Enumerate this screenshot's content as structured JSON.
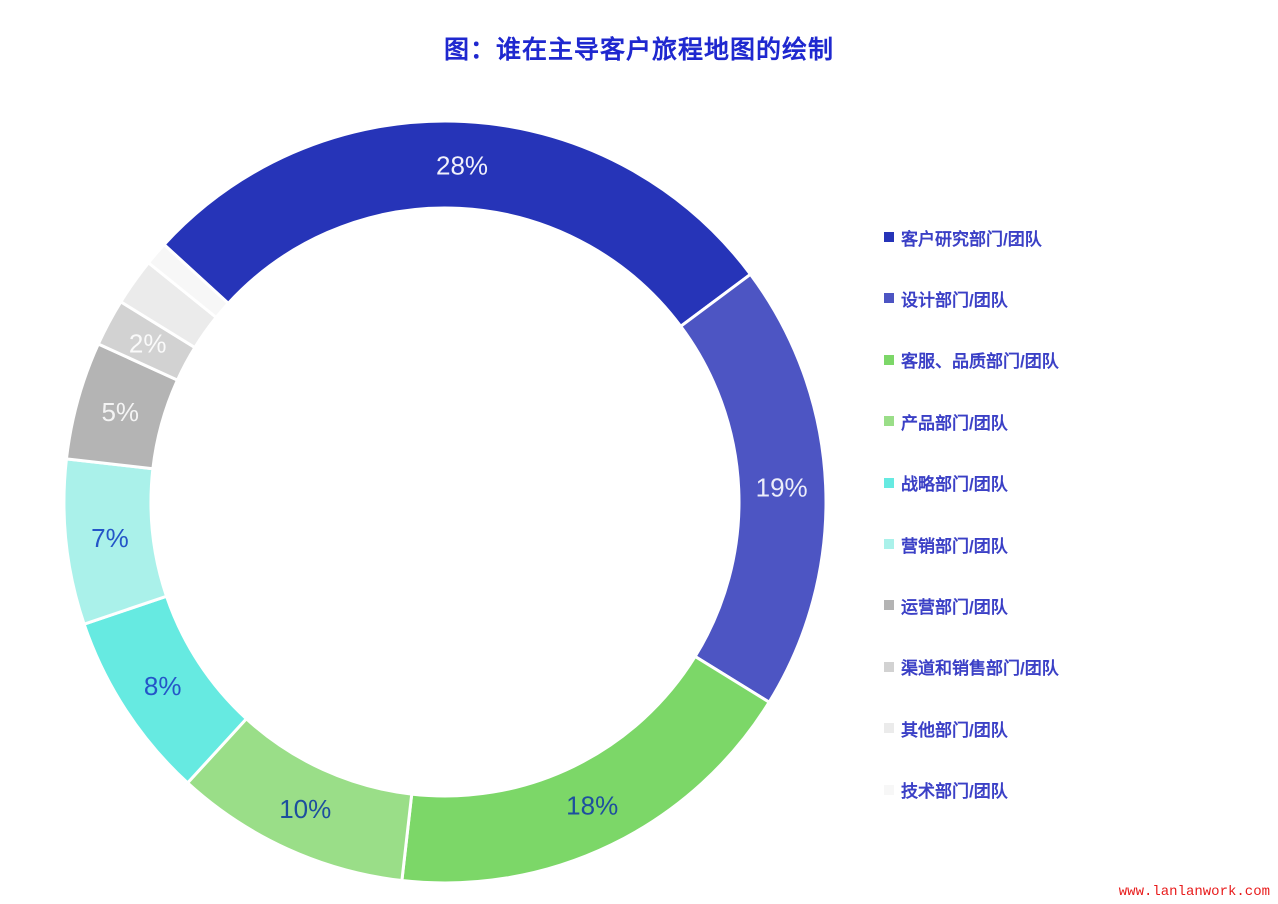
{
  "title": "图：谁在主导客户旅程地图的绘制",
  "watermark": "www.lanlanwork.com",
  "colors": {
    "background": "#ffffff",
    "title_text": "#1f28cf",
    "legend_text": "#3b40c6",
    "watermark_text": "#e81c1c",
    "segment_divider": "#ffffff"
  },
  "chart_data": {
    "type": "pie",
    "subtype": "donut",
    "title": "图：谁在主导客户旅程地图的绘制",
    "direction": "clockwise",
    "start_angle_deg": -47.5,
    "legend_position": "right",
    "segments": [
      {
        "label": "客户研究部门/团队",
        "value": 28,
        "color": "#2634b8",
        "data_label": "28%",
        "data_label_color": "#f0f0fb"
      },
      {
        "label": "设计部门/团队",
        "value": 19,
        "color": "#4d55c3",
        "data_label": "19%",
        "data_label_color": "#ecedfa"
      },
      {
        "label": "客服、品质部门/团队",
        "value": 18,
        "color": "#7cd768",
        "data_label": "18%",
        "data_label_color": "#1d4f9e"
      },
      {
        "label": "产品部门/团队",
        "value": 10,
        "color": "#9ade88",
        "data_label": "10%",
        "data_label_color": "#1d4f9e"
      },
      {
        "label": "战略部门/团队",
        "value": 8,
        "color": "#66eae1",
        "data_label": "8%",
        "data_label_color": "#2455c8"
      },
      {
        "label": "营销部门/团队",
        "value": 7,
        "color": "#aaf1ea",
        "data_label": "7%",
        "data_label_color": "#2455c8"
      },
      {
        "label": "运营部门/团队",
        "value": 5,
        "color": "#b4b4b4",
        "data_label": "5%",
        "data_label_color": "#f4f4f4"
      },
      {
        "label": "渠道和销售部门/团队",
        "value": 2,
        "color": "#d2d2d2",
        "data_label": "2%",
        "data_label_color": "#fafafa"
      },
      {
        "label": "其他部门/团队",
        "value": 2,
        "color": "#ebebeb",
        "data_label": "",
        "data_label_color": ""
      },
      {
        "label": "技术部门/团队",
        "value": 1,
        "color": "#f7f7f7",
        "data_label": "",
        "data_label_color": ""
      }
    ]
  }
}
